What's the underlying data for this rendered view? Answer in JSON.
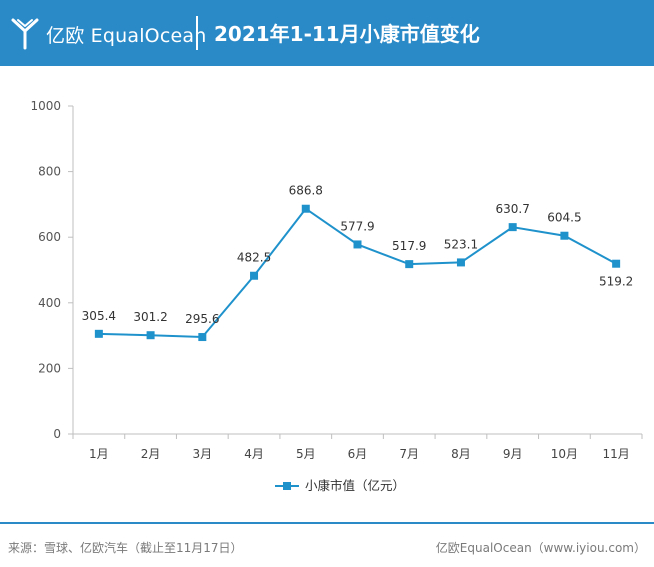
{
  "header": {
    "brand": "亿欧 EqualOcean",
    "title": "2021年1-11月小康市值变化",
    "background_color": "#2a8ac8",
    "logo_icon": "equalocean-logo-icon"
  },
  "chart_data": {
    "type": "line",
    "title": "2021年1-11月小康市值变化",
    "xlabel": "",
    "ylabel": "",
    "categories": [
      "1月",
      "2月",
      "3月",
      "4月",
      "5月",
      "6月",
      "7月",
      "8月",
      "9月",
      "10月",
      "11月"
    ],
    "series": [
      {
        "name": "小康市值（亿元）",
        "color": "#1f92cc",
        "values": [
          305.4,
          301.2,
          295.6,
          482.5,
          686.8,
          577.9,
          517.9,
          523.1,
          630.7,
          604.5,
          519.2
        ],
        "labels": [
          "305.4",
          "301.2",
          "295.6",
          "482.5",
          "686.8",
          "577.9",
          "517.9",
          "523.1",
          "630.7",
          "604.5",
          "519.2"
        ]
      }
    ],
    "ylim": [
      0,
      1000
    ],
    "yticks": [
      0,
      200,
      400,
      600,
      800,
      1000
    ],
    "ytick_labels": [
      "0",
      "200",
      "400",
      "600",
      "800",
      "1000"
    ],
    "grid": false,
    "legend_position": "bottom"
  },
  "footer": {
    "source": "来源：雪球、亿欧汽车（截止至11月17日）",
    "credit": "亿欧EqualOcean（www.iyiou.com）",
    "line_color": "#2a8ac8"
  }
}
